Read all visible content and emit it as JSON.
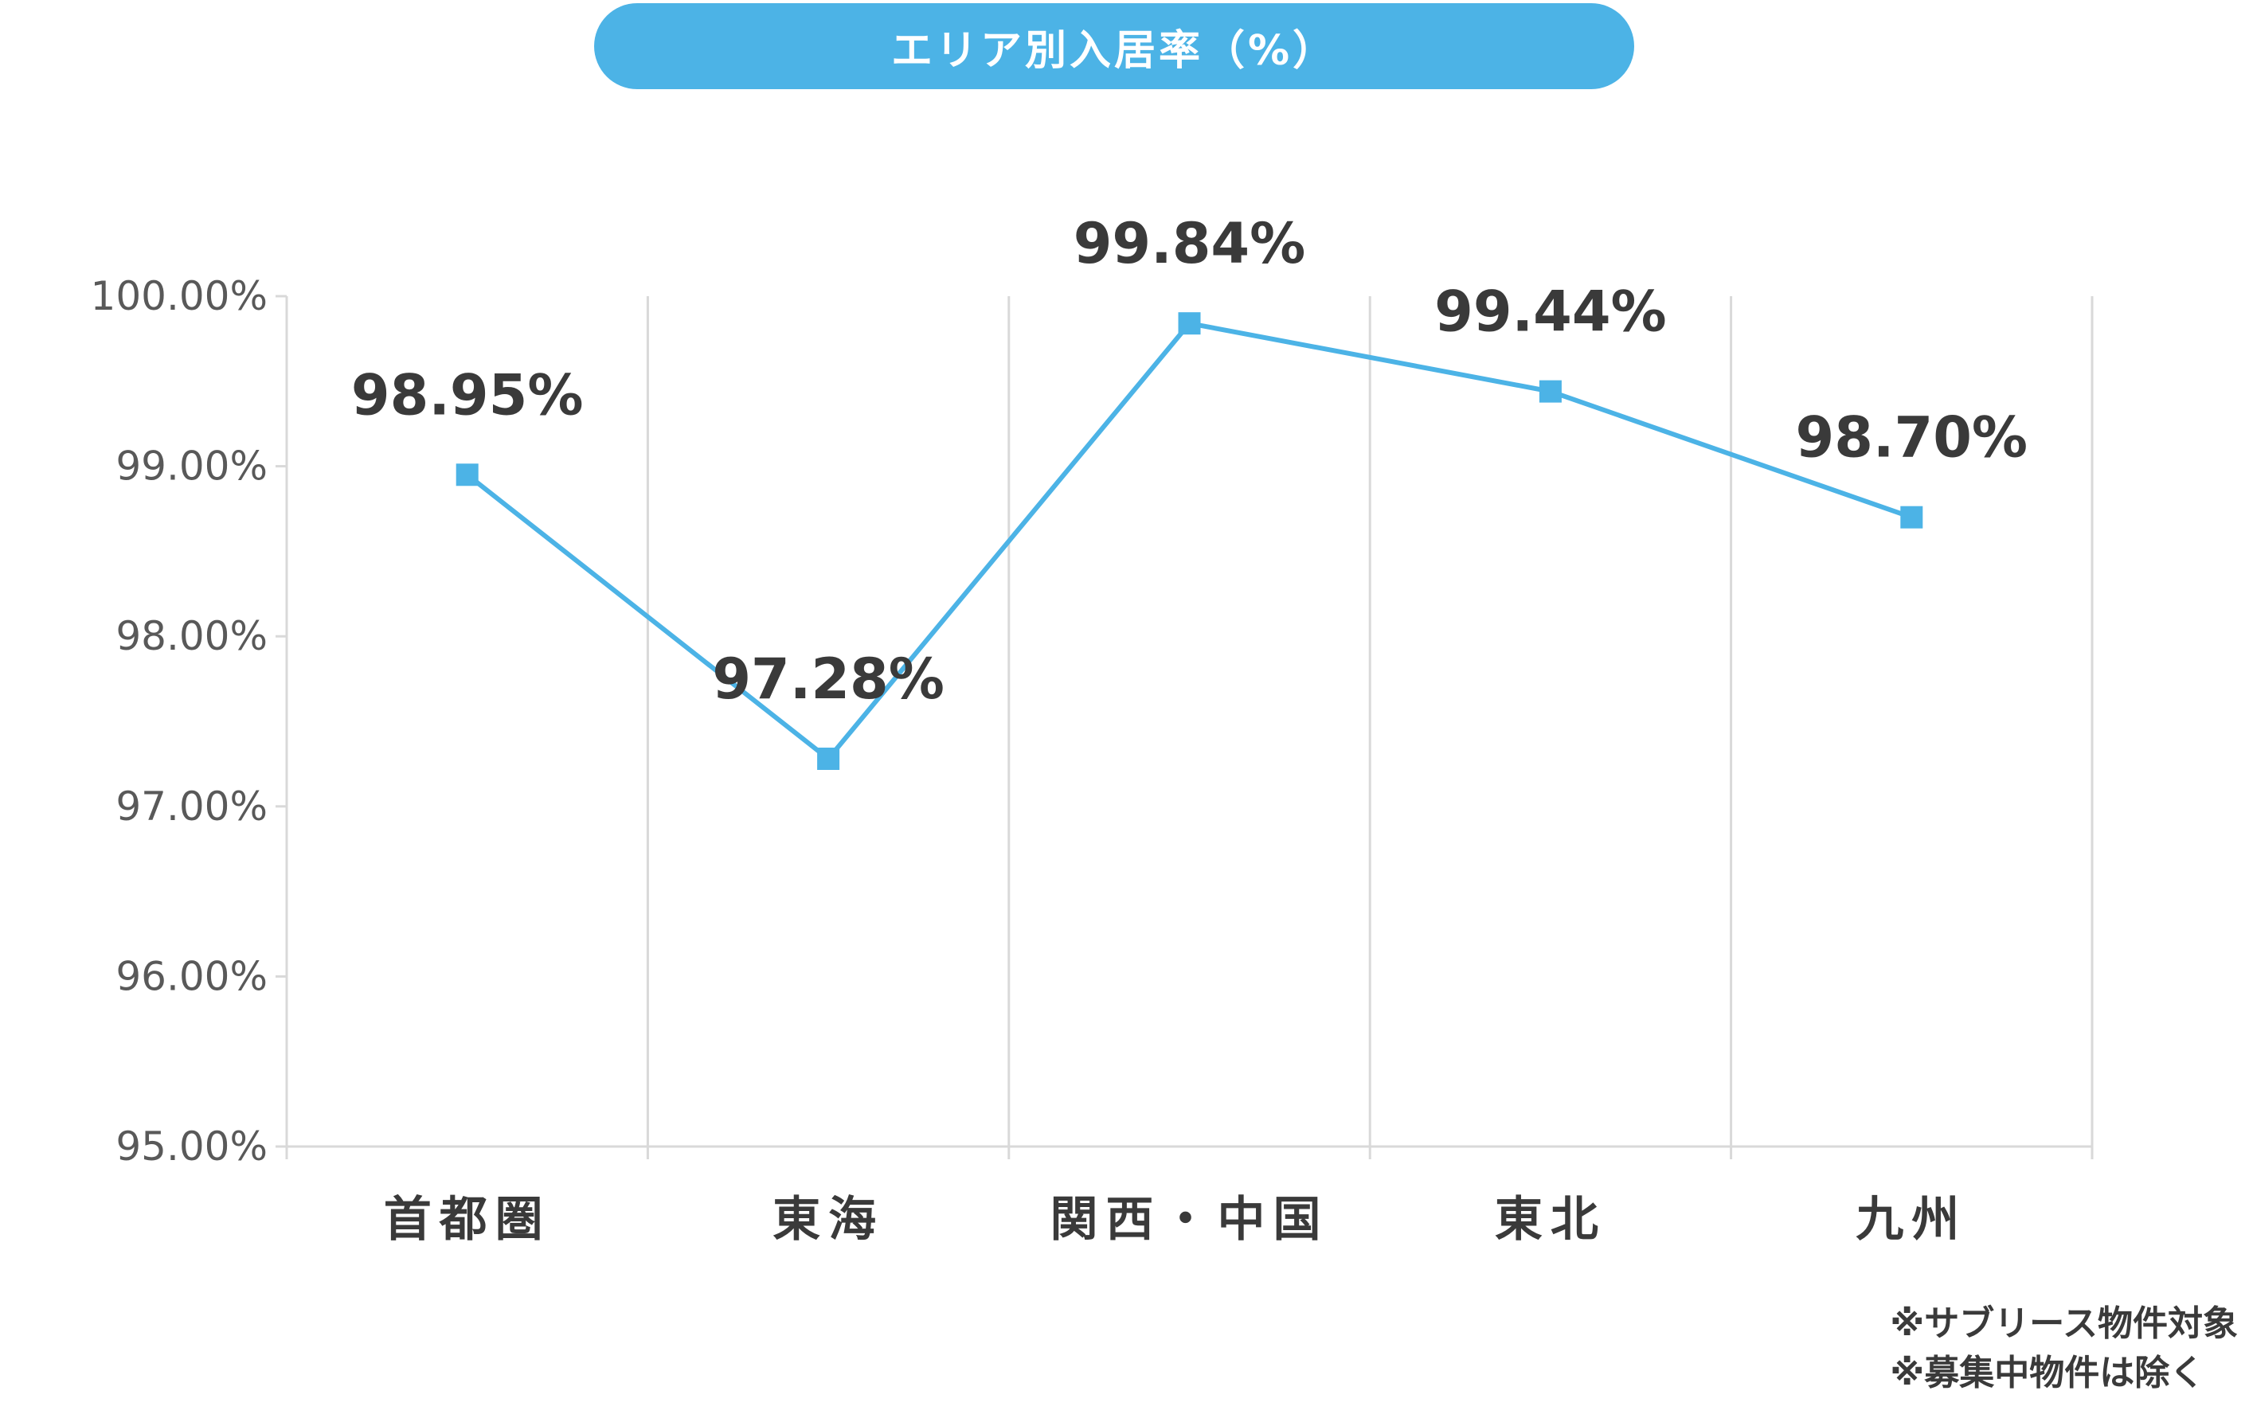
{
  "header": {
    "title": "エリア別入居率（%）"
  },
  "chart_data": {
    "type": "line",
    "title": "エリア別入居率（%）",
    "categories": [
      "首都圏",
      "東海",
      "関西・中国",
      "東北",
      "九州"
    ],
    "series": [
      {
        "values": [
          98.95,
          97.28,
          99.84,
          99.44,
          98.7
        ],
        "labels": [
          "98.95%",
          "97.28%",
          "99.84%",
          "99.44%",
          "98.70%"
        ]
      }
    ],
    "ylim": [
      95,
      100
    ],
    "yticks": [
      95,
      96,
      97,
      98,
      99,
      100
    ],
    "ytick_labels": [
      "95.00%",
      "96.00%",
      "97.00%",
      "98.00%",
      "99.00%",
      "100.00%"
    ],
    "grid": "vertical",
    "xlabel": "",
    "ylabel": ""
  },
  "style": {
    "line_color": "#4cb3e6",
    "marker_color": "#4cb3e6",
    "grid_color": "#d9d9d9",
    "axis_color": "#d9d9d9",
    "tick_label_color": "#595959",
    "data_label_color": "#3a3a3a",
    "category_label_color": "#3a3a3a"
  },
  "footnotes": [
    "※サブリース物件対象",
    "※募集中物件は除く"
  ]
}
